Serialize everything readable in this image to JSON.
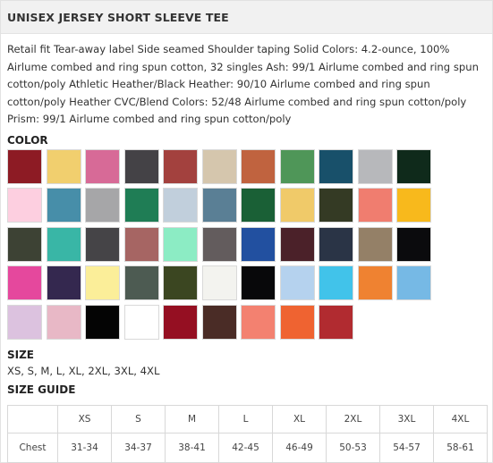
{
  "product": {
    "title": "UNISEX JERSEY SHORT SLEEVE TEE",
    "description": "Retail fit Tear-away label Side seamed Shoulder taping Solid Colors: 4.2-ounce, 100% Airlume combed and ring spun cotton, 32 singles Ash: 99/1 Airlume combed and ring spun cotton/poly Athletic Heather/Black Heather: 90/10 Airlume combed and ring spun cotton/poly Heather CVC/Blend Colors: 52/48 Airlume combed and ring spun cotton/poly Prism: 99/1 Airlume combed and ring spun cotton/poly"
  },
  "color_section": {
    "label": "COLOR",
    "swatches": [
      "#8d1b24",
      "#f1cf6e",
      "#d76a97",
      "#444246",
      "#a3413e",
      "#d5c6ad",
      "#c0633f",
      "#4f9658",
      "#18506a",
      "#b7b8bb",
      "#0f2a1b",
      "#fdcfe0",
      "#478ea9",
      "#a6a6a8",
      "#1f7d55",
      "#c1cfdc",
      "#5a7f95",
      "#1a6036",
      "#f0ca69",
      "#343a24",
      "#f07d6f",
      "#f8b91c",
      "#3d4234",
      "#39b6a6",
      "#454447",
      "#a66563",
      "#8cecc4",
      "#635c5d",
      "#2250a0",
      "#4b2129",
      "#2a3446",
      "#948067",
      "#0b0b0d",
      "#e5489d",
      "#34284f",
      "#fbee99",
      "#4d5b52",
      "#3b4621",
      "#f3f3ef",
      "#08080a",
      "#b5d2ee",
      "#41c3ea",
      "#ef8231",
      "#76b9e5",
      "#dcc2df",
      "#e8b8c6",
      "#040404",
      "#ffffff",
      "#950f22",
      "#4a2c26",
      "#f38170",
      "#ef6331",
      "#b12b30"
    ]
  },
  "size_section": {
    "label": "SIZE",
    "values": "XS, S, M, L, XL, 2XL, 3XL, 4XL"
  },
  "size_guide": {
    "label": "SIZE GUIDE",
    "headers": [
      "XS",
      "S",
      "M",
      "L",
      "XL",
      "2XL",
      "3XL",
      "4XL"
    ],
    "row_label": "Chest",
    "values": [
      "31-34",
      "34-37",
      "38-41",
      "42-45",
      "46-49",
      "50-53",
      "54-57",
      "58-61"
    ]
  }
}
